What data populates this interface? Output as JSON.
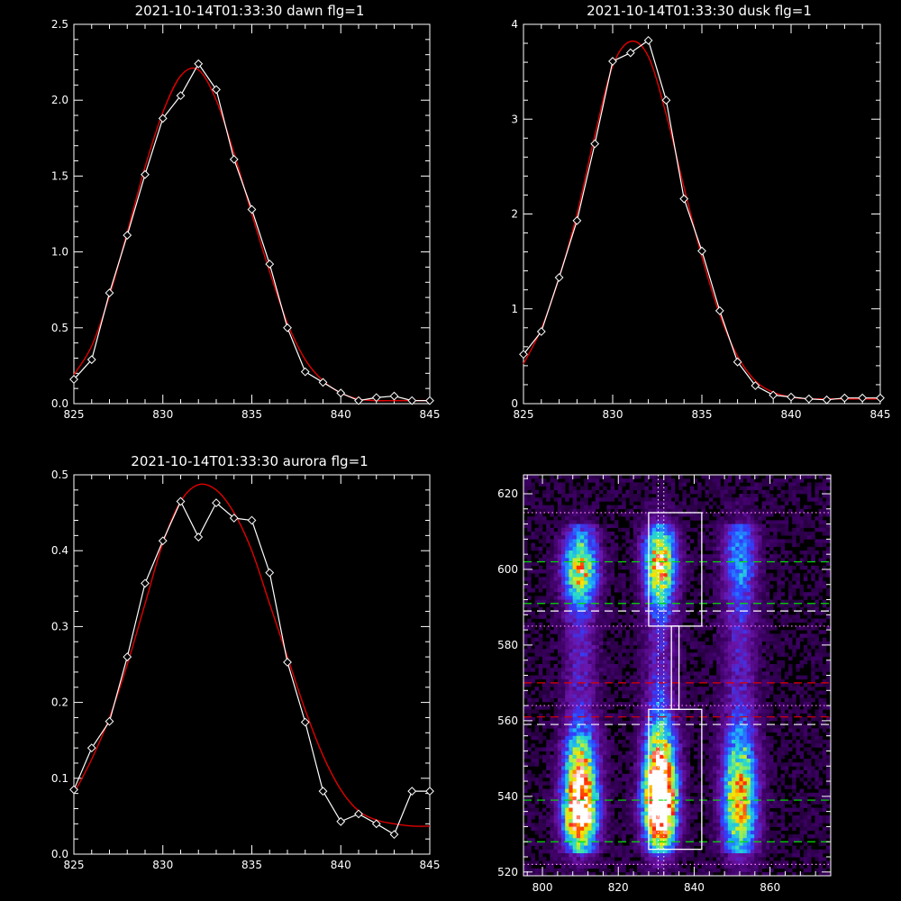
{
  "chart_data": [
    {
      "type": "line",
      "title": "2021-10-14T01:33:30 dawn flg=1",
      "xlim": [
        825,
        845
      ],
      "ylim": [
        0,
        2.5
      ],
      "xticks": [
        825,
        830,
        835,
        840,
        845
      ],
      "yticks": [
        0.0,
        0.5,
        1.0,
        1.5,
        2.0,
        2.5
      ],
      "ytick_labels": [
        "0.0",
        "0.5",
        "1.0",
        "1.5",
        "2.0",
        "2.5"
      ],
      "series": [
        {
          "style": "white line with diamond markers",
          "color": "#ffffff",
          "x": [
            825,
            826,
            827,
            828,
            829,
            830,
            831,
            832,
            833,
            834,
            835,
            836,
            837,
            838,
            839,
            840,
            841,
            842,
            843,
            844,
            845
          ],
          "y": [
            0.16,
            0.29,
            0.73,
            1.11,
            1.51,
            1.88,
            2.03,
            2.24,
            2.07,
            1.61,
            1.28,
            0.92,
            0.5,
            0.21,
            0.14,
            0.07,
            0.02,
            0.04,
            0.05,
            0.02,
            0.02
          ]
        },
        {
          "style": "red fit curve",
          "color": "#e00000",
          "x": [
            825,
            826,
            827,
            828,
            829,
            830,
            831,
            832,
            833,
            834,
            835,
            836,
            837,
            838,
            839,
            840,
            841,
            842,
            843,
            844,
            845
          ],
          "y": [
            0.19,
            0.38,
            0.71,
            1.13,
            1.56,
            1.92,
            2.16,
            2.2,
            2.0,
            1.65,
            1.25,
            0.87,
            0.53,
            0.29,
            0.15,
            0.07,
            0.03,
            0.02,
            0.02,
            0.02,
            0.02
          ]
        }
      ]
    },
    {
      "type": "line",
      "title": "2021-10-14T01:33:30 dusk flg=1",
      "xlim": [
        825,
        845
      ],
      "ylim": [
        0,
        4
      ],
      "xticks": [
        825,
        830,
        835,
        840,
        845
      ],
      "yticks": [
        0,
        1,
        2,
        3,
        4
      ],
      "ytick_labels": [
        "0",
        "1",
        "2",
        "3",
        "4"
      ],
      "series": [
        {
          "style": "white line with diamond markers",
          "color": "#ffffff",
          "x": [
            825,
            826,
            827,
            828,
            829,
            830,
            831,
            832,
            833,
            834,
            835,
            836,
            837,
            838,
            839,
            840,
            841,
            842,
            843,
            844,
            845
          ],
          "y": [
            0.52,
            0.76,
            1.33,
            1.93,
            2.74,
            3.61,
            3.7,
            3.83,
            3.2,
            2.16,
            1.61,
            0.98,
            0.44,
            0.19,
            0.09,
            0.07,
            0.05,
            0.04,
            0.06,
            0.06,
            0.06
          ]
        },
        {
          "style": "red fit curve",
          "color": "#e00000",
          "x": [
            825,
            826,
            827,
            828,
            829,
            830,
            831,
            832,
            833,
            834,
            835,
            836,
            837,
            838,
            839,
            840,
            841,
            842,
            843,
            844,
            845
          ],
          "y": [
            0.42,
            0.79,
            1.33,
            2.0,
            2.83,
            3.56,
            3.82,
            3.66,
            3.05,
            2.28,
            1.55,
            0.94,
            0.5,
            0.24,
            0.12,
            0.07,
            0.05,
            0.05,
            0.05,
            0.05,
            0.05
          ]
        }
      ]
    },
    {
      "type": "line",
      "title": "2021-10-14T01:33:30 aurora flg=1",
      "xlim": [
        825,
        845
      ],
      "ylim": [
        0,
        0.5
      ],
      "xticks": [
        825,
        830,
        835,
        840,
        845
      ],
      "yticks": [
        0.0,
        0.1,
        0.2,
        0.3,
        0.4,
        0.5
      ],
      "ytick_labels": [
        "0.0",
        "0.1",
        "0.2",
        "0.3",
        "0.4",
        "0.5"
      ],
      "series": [
        {
          "style": "white line with diamond markers",
          "color": "#ffffff",
          "x": [
            825,
            826,
            827,
            828,
            829,
            830,
            831,
            832,
            833,
            834,
            835,
            836,
            837,
            838,
            839,
            840,
            841,
            842,
            843,
            844,
            845
          ],
          "y": [
            0.085,
            0.14,
            0.175,
            0.26,
            0.357,
            0.413,
            0.465,
            0.418,
            0.463,
            0.443,
            0.44,
            0.371,
            0.253,
            0.174,
            0.083,
            0.043,
            0.053,
            0.04,
            0.026,
            0.083,
            0.083
          ]
        },
        {
          "style": "red fit curve",
          "color": "#e00000",
          "x": [
            825,
            826,
            827,
            828,
            829,
            830,
            831,
            832,
            833,
            834,
            835,
            836,
            837,
            838,
            839,
            840,
            841,
            842,
            843,
            844,
            845
          ],
          "y": [
            0.08,
            0.125,
            0.18,
            0.25,
            0.33,
            0.41,
            0.465,
            0.487,
            0.48,
            0.45,
            0.4,
            0.33,
            0.26,
            0.19,
            0.13,
            0.085,
            0.057,
            0.045,
            0.04,
            0.037,
            0.037
          ]
        }
      ]
    },
    {
      "type": "heatmap",
      "title": "",
      "xlim": [
        795,
        876
      ],
      "ylim": [
        519,
        625
      ],
      "xticks": [
        800,
        820,
        840,
        860
      ],
      "yticks": [
        520,
        540,
        560,
        580,
        600,
        620
      ],
      "colormap": [
        "#000000",
        "#3a0060",
        "#6a14a8",
        "#3040ff",
        "#1ea8ff",
        "#2de0c0",
        "#b0f040",
        "#ffe000",
        "#ff2000",
        "#ffffff"
      ],
      "emission_columns": [
        {
          "x": 810,
          "width": 3,
          "peaks": [
            {
              "y": 535,
              "level": 0.85,
              "spread": 6
            },
            {
              "y": 547,
              "level": 0.55,
              "spread": 7
            },
            {
              "y": 600,
              "level": 0.55,
              "spread": 6
            }
          ]
        },
        {
          "x": 831,
          "width": 2.8,
          "peaks": [
            {
              "y": 537,
              "level": 1.0,
              "spread": 7
            },
            {
              "y": 548,
              "level": 0.6,
              "spread": 9
            },
            {
              "y": 601,
              "level": 0.65,
              "spread": 7
            }
          ]
        },
        {
          "x": 852,
          "width": 3,
          "peaks": [
            {
              "y": 536,
              "level": 0.5,
              "spread": 8
            },
            {
              "y": 548,
              "level": 0.3,
              "spread": 8
            },
            {
              "y": 602,
              "level": 0.2,
              "spread": 8
            }
          ]
        }
      ],
      "boxes": [
        {
          "x": [
            828,
            842
          ],
          "y": [
            526,
            563
          ]
        },
        {
          "x": [
            828,
            842
          ],
          "y": [
            585,
            615
          ]
        },
        {
          "x": [
            834,
            836
          ],
          "y": [
            563,
            585
          ]
        }
      ],
      "vertical_dotted_lines": [
        {
          "x": 830.5
        },
        {
          "x": 832
        }
      ],
      "horizontal_lines": [
        {
          "y": 615,
          "color": "#ff80ff",
          "style": "dotted"
        },
        {
          "y": 602,
          "color": "#00e000",
          "style": "dashed"
        },
        {
          "y": 591,
          "color": "#00e000",
          "style": "dashed"
        },
        {
          "y": 589,
          "color": "#ffffff",
          "style": "dashed"
        },
        {
          "y": 585,
          "color": "#ff80ff",
          "style": "dotted"
        },
        {
          "y": 570,
          "color": "#e00000",
          "style": "dashed"
        },
        {
          "y": 564,
          "color": "#ff80ff",
          "style": "dotted"
        },
        {
          "y": 561,
          "color": "#e00000",
          "style": "dashed"
        },
        {
          "y": 559,
          "color": "#ffffff",
          "style": "dashed"
        },
        {
          "y": 539,
          "color": "#00e000",
          "style": "dashed"
        },
        {
          "y": 528,
          "color": "#00e000",
          "style": "dashed"
        },
        {
          "y": 522,
          "color": "#ff80ff",
          "style": "dotted"
        }
      ]
    }
  ]
}
